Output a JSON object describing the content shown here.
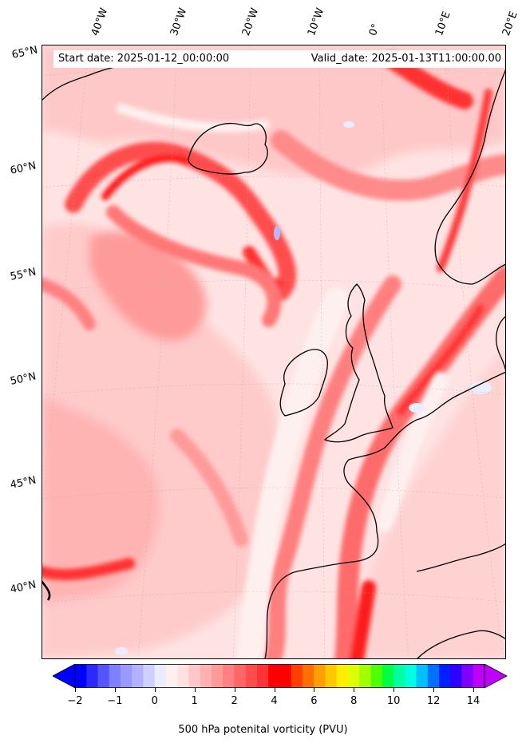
{
  "header": {
    "start_date": "Start date: 2025-01-12_00:00:00",
    "valid_date": "Valid_date: 2025-01-13T11:00:00.00"
  },
  "map": {
    "projection": "Lambert conformal",
    "longitude_labels": [
      "40°W",
      "30°W",
      "20°W",
      "10°W",
      "0°",
      "10°E",
      "20°E"
    ],
    "latitude_labels": [
      "65°N",
      "60°N",
      "55°N",
      "50°N",
      "45°N",
      "40°N"
    ],
    "field": "500 hPa potential vorticity",
    "dominant_range": "0–2 PVU (pink/red shades)"
  },
  "colorbar": {
    "label": "500 hPa potenital vorticity (PVU)",
    "ticks": [
      "−2",
      "−1",
      "0",
      "1",
      "2",
      "4",
      "6",
      "8",
      "10",
      "12",
      "14"
    ],
    "colors": [
      "#0000ff",
      "#2a2aff",
      "#5555ff",
      "#7f7fff",
      "#9999ff",
      "#b2b2ff",
      "#d0d0ff",
      "#ececff",
      "#fff0f0",
      "#ffe0e0",
      "#ffc8c8",
      "#ffb0b0",
      "#ff9a9a",
      "#ff8080",
      "#ff6666",
      "#ff4d4d",
      "#ff3333",
      "#ff0000",
      "#ff0000",
      "#ff4000",
      "#ff7000",
      "#ffa000",
      "#ffc800",
      "#ffee00",
      "#ddff00",
      "#a0ff00",
      "#50ff00",
      "#00ff40",
      "#00ffa0",
      "#00ffe0",
      "#00c0ff",
      "#0070ff",
      "#0020ff",
      "#3000ff",
      "#8000ff",
      "#c000ff"
    ]
  }
}
